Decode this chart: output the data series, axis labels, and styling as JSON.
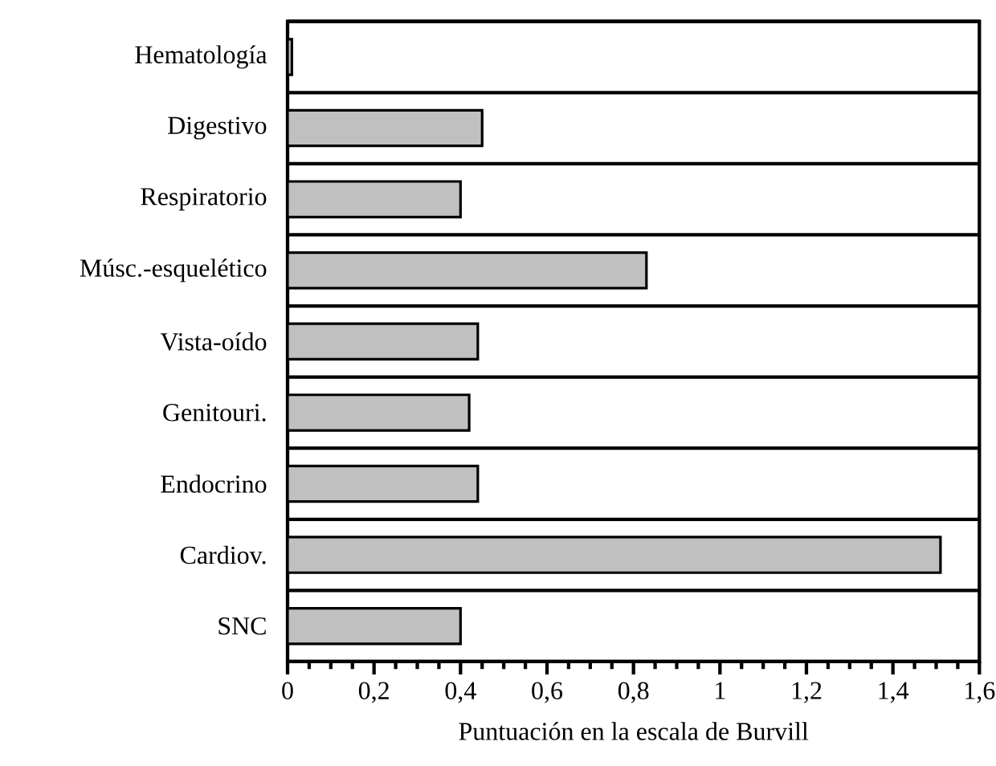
{
  "chart_data": {
    "type": "bar",
    "orientation": "horizontal",
    "xlabel": "Puntuación en la escala de Burvill",
    "categories": [
      "Hematología",
      "Digestivo",
      "Respiratorio",
      "Músc.-esquelético",
      "Vista-oído",
      "Genitouri.",
      "Endocrino",
      "Cardiov.",
      "SNC"
    ],
    "values": [
      0.01,
      0.45,
      0.4,
      0.83,
      0.44,
      0.42,
      0.44,
      1.51,
      0.4
    ],
    "color": "#c0c0c0",
    "xlim": [
      0,
      1.6
    ],
    "xticks": [
      {
        "value": 0,
        "label": "0"
      },
      {
        "value": 0.2,
        "label": "0,2"
      },
      {
        "value": 0.4,
        "label": "0,4"
      },
      {
        "value": 0.6,
        "label": "0,6"
      },
      {
        "value": 0.8,
        "label": "0,8"
      },
      {
        "value": 1,
        "label": "1"
      },
      {
        "value": 1.2,
        "label": "1,2"
      },
      {
        "value": 1.4,
        "label": "1,4"
      },
      {
        "value": 1.6,
        "label": "1,6"
      }
    ],
    "grid": "y"
  }
}
